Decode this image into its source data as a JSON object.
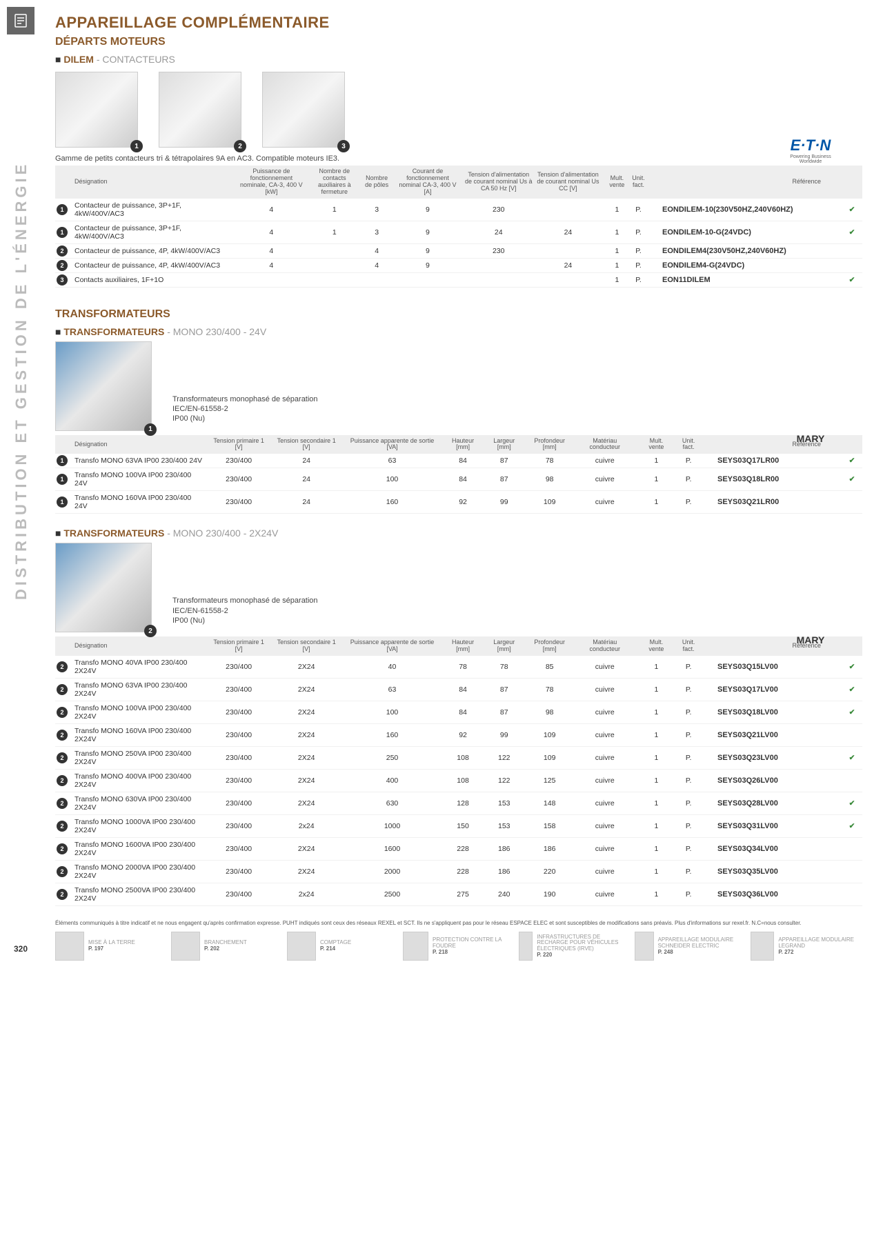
{
  "verticalLabel": "DISTRIBUTION ET GESTION DE L'ÉNERGIE",
  "pageNumber": "320",
  "title": "APPAREILLAGE COMPLÉMENTAIRE",
  "sub1": "DÉPARTS MOTEURS",
  "dilem": {
    "heading": "DILEM",
    "suffix": "- CONTACTEURS",
    "caption": "Gamme de petits contacteurs tri & tétrapolaires 9A en AC3. Compatible moteurs IE3.",
    "brand": {
      "name": "E·T·N",
      "sub": "Powering Business Worldwide"
    },
    "imageBadges": [
      "1",
      "2",
      "3"
    ],
    "headers": [
      "Désignation",
      "Puissance de fonctionnement nominale, CA-3, 400 V [kW]",
      "Nombre de contacts auxiliaires à fermeture",
      "Nombre de pôles",
      "Courant de fonctionnement nominal CA-3, 400 V [A]",
      "Tension d'alimentation de courant nominal Us à CA 50 Hz [V]",
      "Tension d'alimentation de courant nominal Us CC [V]",
      "",
      "Mult. vente",
      "Unit. fact.",
      "Référence",
      ""
    ],
    "rows": [
      {
        "b": "1",
        "des": "Contacteur de puissance, 3P+1F, 4kW/400V/AC3",
        "v": [
          "4",
          "1",
          "3",
          "9",
          "230",
          "",
          "",
          "1",
          "P."
        ],
        "ref": "EONDILEM-10(230V50HZ,240V60HZ)",
        "chk": true
      },
      {
        "b": "1",
        "des": "Contacteur de puissance, 3P+1F, 4kW/400V/AC3",
        "v": [
          "4",
          "1",
          "3",
          "9",
          "24",
          "24",
          "",
          "1",
          "P."
        ],
        "ref": "EONDILEM-10-G(24VDC)",
        "chk": true
      },
      {
        "b": "2",
        "des": "Contacteur de puissance, 4P, 4kW/400V/AC3",
        "v": [
          "4",
          "",
          "4",
          "9",
          "230",
          "",
          "",
          "1",
          "P."
        ],
        "ref": "EONDILEM4(230V50HZ,240V60HZ)",
        "chk": false
      },
      {
        "b": "2",
        "des": "Contacteur de puissance, 4P, 4kW/400V/AC3",
        "v": [
          "4",
          "",
          "4",
          "9",
          "",
          "24",
          "",
          "1",
          "P."
        ],
        "ref": "EONDILEM4-G(24VDC)",
        "chk": false
      },
      {
        "b": "3",
        "des": "Contacts auxiliaires, 1F+1O",
        "v": [
          "",
          "",
          "",
          "",
          "",
          "",
          "",
          "1",
          "P."
        ],
        "ref": "EON11DILEM",
        "chk": true
      }
    ]
  },
  "sub2": "TRANSFORMATEURS",
  "trans24": {
    "heading": "TRANSFORMATEURS",
    "suffix": "- MONO 230/400 - 24V",
    "caption": "Transformateurs monophasé de séparation\nIEC/EN-61558-2\nIP00 (Nu)",
    "brand": "MARY",
    "imageBadge": "1",
    "headers": [
      "Désignation",
      "Tension primaire 1 [V]",
      "Tension secondaire 1 [V]",
      "Puissance apparente de sortie [VA]",
      "Hauteur [mm]",
      "Largeur [mm]",
      "Profondeur [mm]",
      "Matériau conducteur",
      "",
      "Mult. vente",
      "Unit. fact.",
      "Référence",
      ""
    ],
    "rows": [
      {
        "b": "1",
        "des": "Transfo MONO 63VA IP00 230/400 24V",
        "v": [
          "230/400",
          "24",
          "63",
          "84",
          "87",
          "78",
          "cuivre",
          "",
          "1",
          "P."
        ],
        "ref": "SEYS03Q17LR00",
        "chk": true
      },
      {
        "b": "1",
        "des": "Transfo MONO 100VA IP00 230/400 24V",
        "v": [
          "230/400",
          "24",
          "100",
          "84",
          "87",
          "98",
          "cuivre",
          "",
          "1",
          "P."
        ],
        "ref": "SEYS03Q18LR00",
        "chk": true
      },
      {
        "b": "1",
        "des": "Transfo MONO 160VA IP00 230/400 24V",
        "v": [
          "230/400",
          "24",
          "160",
          "92",
          "99",
          "109",
          "cuivre",
          "",
          "1",
          "P."
        ],
        "ref": "SEYS03Q21LR00",
        "chk": false
      }
    ]
  },
  "trans2x24": {
    "heading": "TRANSFORMATEURS",
    "suffix": "- MONO 230/400 - 2X24V",
    "caption": "Transformateurs monophasé de séparation\nIEC/EN-61558-2\nIP00 (Nu)",
    "brand": "MARY",
    "imageBadge": "2",
    "headers": [
      "Désignation",
      "Tension primaire 1 [V]",
      "Tension secondaire 1 [V]",
      "Puissance apparente de sortie [VA]",
      "Hauteur [mm]",
      "Largeur [mm]",
      "Profondeur [mm]",
      "Matériau conducteur",
      "",
      "Mult. vente",
      "Unit. fact.",
      "Référence",
      ""
    ],
    "rows": [
      {
        "b": "2",
        "des": "Transfo MONO 40VA IP00 230/400 2X24V",
        "v": [
          "230/400",
          "2X24",
          "40",
          "78",
          "78",
          "85",
          "cuivre",
          "",
          "1",
          "P."
        ],
        "ref": "SEYS03Q15LV00",
        "chk": true
      },
      {
        "b": "2",
        "des": "Transfo MONO 63VA IP00 230/400 2X24V",
        "v": [
          "230/400",
          "2X24",
          "63",
          "84",
          "87",
          "78",
          "cuivre",
          "",
          "1",
          "P."
        ],
        "ref": "SEYS03Q17LV00",
        "chk": true
      },
      {
        "b": "2",
        "des": "Transfo MONO 100VA IP00 230/400 2X24V",
        "v": [
          "230/400",
          "2X24",
          "100",
          "84",
          "87",
          "98",
          "cuivre",
          "",
          "1",
          "P."
        ],
        "ref": "SEYS03Q18LV00",
        "chk": true
      },
      {
        "b": "2",
        "des": "Transfo MONO 160VA IP00 230/400 2X24V",
        "v": [
          "230/400",
          "2X24",
          "160",
          "92",
          "99",
          "109",
          "cuivre",
          "",
          "1",
          "P."
        ],
        "ref": "SEYS03Q21LV00",
        "chk": false
      },
      {
        "b": "2",
        "des": "Transfo MONO 250VA IP00 230/400 2X24V",
        "v": [
          "230/400",
          "2X24",
          "250",
          "108",
          "122",
          "109",
          "cuivre",
          "",
          "1",
          "P."
        ],
        "ref": "SEYS03Q23LV00",
        "chk": true
      },
      {
        "b": "2",
        "des": "Transfo MONO 400VA IP00 230/400 2X24V",
        "v": [
          "230/400",
          "2X24",
          "400",
          "108",
          "122",
          "125",
          "cuivre",
          "",
          "1",
          "P."
        ],
        "ref": "SEYS03Q26LV00",
        "chk": false
      },
      {
        "b": "2",
        "des": "Transfo MONO 630VA IP00 230/400 2X24V",
        "v": [
          "230/400",
          "2X24",
          "630",
          "128",
          "153",
          "148",
          "cuivre",
          "",
          "1",
          "P."
        ],
        "ref": "SEYS03Q28LV00",
        "chk": true
      },
      {
        "b": "2",
        "des": "Transfo MONO 1000VA IP00 230/400 2X24V",
        "v": [
          "230/400",
          "2x24",
          "1000",
          "150",
          "153",
          "158",
          "cuivre",
          "",
          "1",
          "P."
        ],
        "ref": "SEYS03Q31LV00",
        "chk": true
      },
      {
        "b": "2",
        "des": "Transfo MONO 1600VA IP00 230/400 2X24V",
        "v": [
          "230/400",
          "2X24",
          "1600",
          "228",
          "186",
          "186",
          "cuivre",
          "",
          "1",
          "P."
        ],
        "ref": "SEYS03Q34LV00",
        "chk": false
      },
      {
        "b": "2",
        "des": "Transfo MONO 2000VA IP00 230/400 2X24V",
        "v": [
          "230/400",
          "2X24",
          "2000",
          "228",
          "186",
          "220",
          "cuivre",
          "",
          "1",
          "P."
        ],
        "ref": "SEYS03Q35LV00",
        "chk": false
      },
      {
        "b": "2",
        "des": "Transfo MONO 2500VA IP00 230/400 2X24V",
        "v": [
          "230/400",
          "2x24",
          "2500",
          "275",
          "240",
          "190",
          "cuivre",
          "",
          "1",
          "P."
        ],
        "ref": "SEYS03Q36LV00",
        "chk": false
      }
    ]
  },
  "disclaimer": "Éléments communiqués à titre indicatif et ne nous engagent qu'après confirmation expresse. PUHT indiqués sont ceux des réseaux REXEL et SCT. Ils ne s'appliquent pas pour le réseau ESPACE ELEC et sont susceptibles de modifications sans préavis. Plus d'informations sur rexel.fr. N.C=nous consulter.",
  "footer": [
    {
      "t": "MISE À LA TERRE",
      "p": "P. 197"
    },
    {
      "t": "BRANCHEMENT",
      "p": "P. 202"
    },
    {
      "t": "COMPTAGE",
      "p": "P. 214"
    },
    {
      "t": "PROTECTION CONTRE LA FOUDRE",
      "p": "P. 218"
    },
    {
      "t": "INFRASTRUCTURES DE RECHARGE POUR VÉHICULES ÉLECTRIQUES (IRVE)",
      "p": "P. 220"
    },
    {
      "t": "APPAREILLAGE MODULAIRE SCHNEIDER ELECTRIC",
      "p": "P. 248"
    },
    {
      "t": "APPAREILLAGE MODULAIRE LEGRAND",
      "p": "P. 272"
    }
  ]
}
